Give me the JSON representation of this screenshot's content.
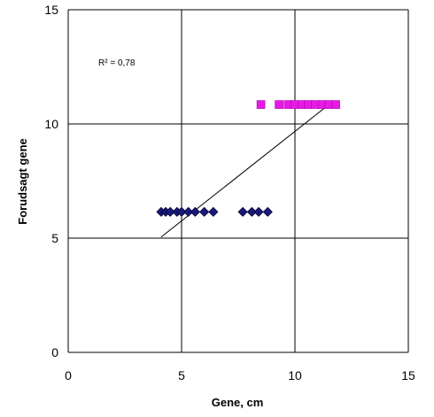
{
  "chart_data": {
    "type": "scatter",
    "xlabel": "Gene, cm",
    "ylabel": "Forudsagt gene",
    "xlim": [
      0,
      15
    ],
    "ylim": [
      0,
      15
    ],
    "xticks": [
      "0",
      "5",
      "10",
      "15"
    ],
    "yticks": [
      "0",
      "5",
      "10",
      "15"
    ],
    "grid": true,
    "annotation": "R² = 0,78",
    "series": [
      {
        "marker": "diamond",
        "color": "#1a1a7a",
        "x": [
          4.1,
          4.3,
          4.5,
          4.8,
          5.0,
          5.3,
          5.6,
          6.0,
          6.4,
          7.7,
          8.1,
          8.4,
          8.8
        ],
        "y": [
          6.15,
          6.15,
          6.15,
          6.15,
          6.15,
          6.15,
          6.15,
          6.15,
          6.15,
          6.15,
          6.15,
          6.15,
          6.15
        ]
      },
      {
        "marker": "square",
        "color": "#e619e6",
        "x": [
          8.5,
          9.3,
          9.7,
          10.0,
          10.3,
          10.6,
          10.9,
          11.2,
          11.5,
          11.8
        ],
        "y": [
          10.85,
          10.85,
          10.85,
          10.85,
          10.85,
          10.85,
          10.85,
          10.85,
          10.85,
          10.85
        ]
      }
    ],
    "trendline": {
      "x": [
        4.1,
        11.5
      ],
      "y": [
        5.05,
        10.85
      ]
    }
  }
}
